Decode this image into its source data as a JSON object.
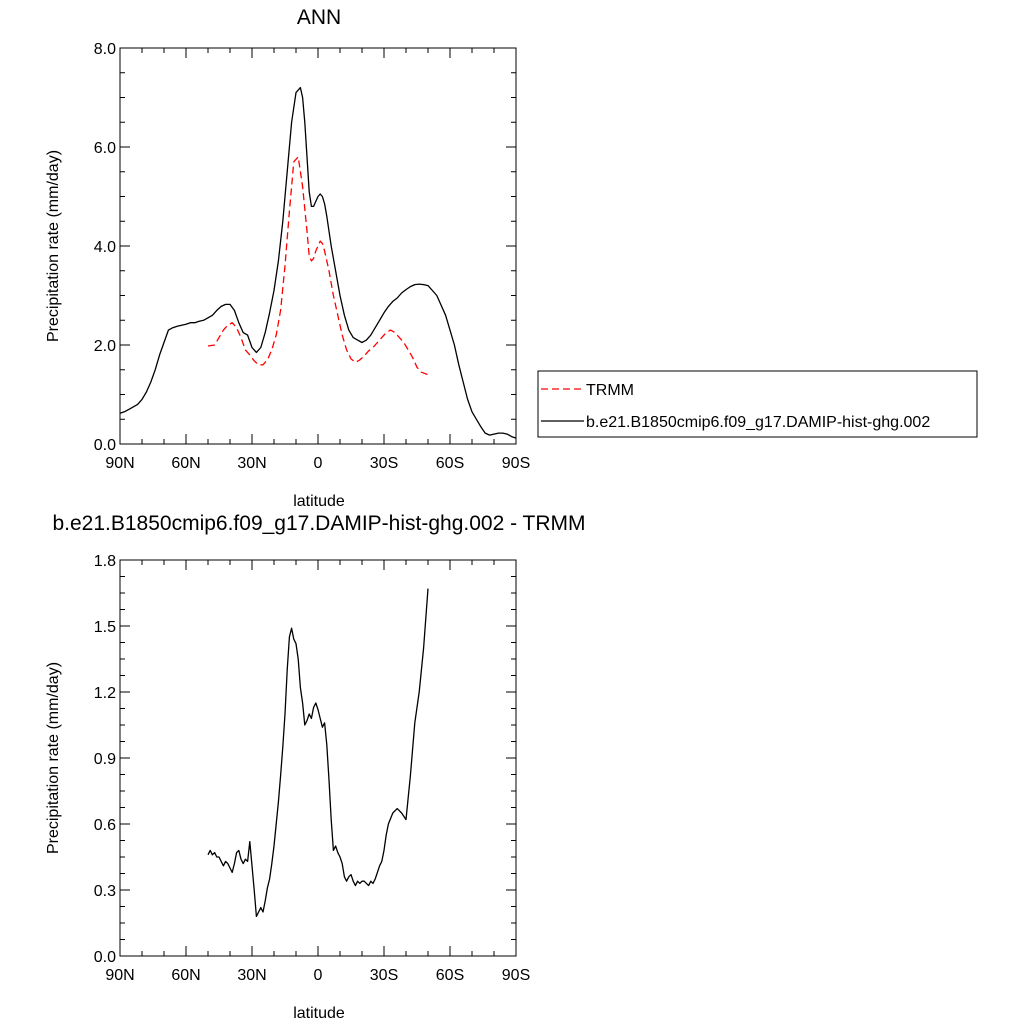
{
  "chart_data": [
    {
      "type": "line",
      "title": "ANN",
      "xlabel": "latitude",
      "ylabel": "Precipitation rate (mm/day)",
      "xlim": [
        90,
        -90
      ],
      "ylim": [
        0,
        8
      ],
      "x_ticks": [
        {
          "value": 90,
          "label": "90N"
        },
        {
          "value": 60,
          "label": "60N"
        },
        {
          "value": 30,
          "label": "30N"
        },
        {
          "value": 0,
          "label": "0"
        },
        {
          "value": -30,
          "label": "30S"
        },
        {
          "value": -60,
          "label": "60S"
        },
        {
          "value": -90,
          "label": "90S"
        }
      ],
      "y_ticks": [
        {
          "value": 0,
          "label": "0.0"
        },
        {
          "value": 2,
          "label": "2.0"
        },
        {
          "value": 4,
          "label": "4.0"
        },
        {
          "value": 6,
          "label": "6.0"
        },
        {
          "value": 8,
          "label": "8.0"
        }
      ],
      "legend": {
        "placement": "right",
        "entries": [
          "TRMM",
          "b.e21.B1850cmip6.f09_g17.DAMIP-hist-ghg.002"
        ]
      },
      "series": [
        {
          "name": "TRMM",
          "color": "#ff0000",
          "dash": "dashed",
          "x": [
            50,
            47,
            45,
            43,
            41,
            39,
            37,
            35,
            33,
            31,
            29,
            27,
            25,
            23,
            21,
            19,
            17,
            15,
            13,
            11,
            9,
            7,
            5,
            4,
            3,
            2,
            1,
            0,
            -1,
            -2,
            -3,
            -4,
            -5,
            -7,
            -9,
            -11,
            -13,
            -15,
            -17,
            -19,
            -21,
            -23,
            -25,
            -27,
            -29,
            -31,
            -33,
            -35,
            -37,
            -39,
            -41,
            -43,
            -45,
            -47,
            -50
          ],
          "values": [
            1.98,
            2.0,
            2.15,
            2.3,
            2.4,
            2.45,
            2.35,
            2.15,
            1.9,
            1.8,
            1.68,
            1.6,
            1.6,
            1.7,
            1.9,
            2.2,
            2.7,
            3.6,
            4.7,
            5.7,
            5.8,
            5.2,
            4.3,
            3.8,
            3.7,
            3.75,
            3.9,
            4.0,
            4.1,
            4.05,
            3.9,
            3.7,
            3.5,
            3.0,
            2.6,
            2.2,
            1.9,
            1.72,
            1.65,
            1.7,
            1.78,
            1.88,
            1.95,
            2.05,
            2.15,
            2.25,
            2.3,
            2.25,
            2.15,
            2.05,
            1.9,
            1.75,
            1.55,
            1.45,
            1.4
          ]
        },
        {
          "name": "b.e21.B1850cmip6.f09_g17.DAMIP-hist-ghg.002",
          "color": "#000000",
          "dash": "solid",
          "x": [
            90,
            88,
            86,
            84,
            82,
            80,
            78,
            76,
            74,
            72,
            70,
            68,
            66,
            64,
            62,
            60,
            58,
            56,
            54,
            52,
            50,
            48,
            46,
            44,
            42,
            40,
            38,
            36,
            34,
            32,
            30,
            28,
            26,
            24,
            22,
            20,
            18,
            16,
            14,
            12,
            10,
            8,
            7,
            6,
            5,
            4,
            3,
            2,
            1,
            0,
            -1,
            -2,
            -3,
            -4,
            -5,
            -6,
            -8,
            -10,
            -12,
            -14,
            -16,
            -18,
            -20,
            -22,
            -24,
            -26,
            -28,
            -30,
            -32,
            -34,
            -36,
            -38,
            -40,
            -42,
            -44,
            -46,
            -48,
            -50,
            -52,
            -54,
            -56,
            -58,
            -60,
            -62,
            -64,
            -66,
            -68,
            -70,
            -72,
            -74,
            -76,
            -78,
            -80,
            -82,
            -84,
            -86,
            -88,
            -90
          ],
          "values": [
            0.62,
            0.65,
            0.7,
            0.75,
            0.8,
            0.9,
            1.05,
            1.25,
            1.5,
            1.8,
            2.05,
            2.3,
            2.35,
            2.38,
            2.4,
            2.42,
            2.45,
            2.45,
            2.48,
            2.5,
            2.55,
            2.6,
            2.7,
            2.78,
            2.82,
            2.82,
            2.7,
            2.45,
            2.25,
            2.2,
            1.95,
            1.85,
            1.95,
            2.25,
            2.65,
            3.1,
            3.7,
            4.5,
            5.5,
            6.5,
            7.1,
            7.2,
            7.0,
            6.5,
            5.8,
            5.1,
            4.8,
            4.8,
            4.9,
            5.0,
            5.05,
            5.0,
            4.85,
            4.6,
            4.3,
            4.0,
            3.5,
            3.0,
            2.6,
            2.3,
            2.15,
            2.1,
            2.05,
            2.1,
            2.2,
            2.35,
            2.5,
            2.65,
            2.78,
            2.88,
            2.95,
            3.05,
            3.12,
            3.18,
            3.22,
            3.23,
            3.22,
            3.2,
            3.1,
            3.0,
            2.8,
            2.6,
            2.3,
            2.0,
            1.6,
            1.25,
            0.9,
            0.65,
            0.5,
            0.35,
            0.22,
            0.18,
            0.2,
            0.22,
            0.22,
            0.2,
            0.15,
            0.12
          ]
        }
      ]
    },
    {
      "type": "line",
      "title": "b.e21.B1850cmip6.f09_g17.DAMIP-hist-ghg.002 - TRMM",
      "xlabel": "latitude",
      "ylabel": "Precipitation rate (mm/day)",
      "xlim": [
        90,
        -90
      ],
      "ylim": [
        0,
        1.8
      ],
      "x_ticks": [
        {
          "value": 90,
          "label": "90N"
        },
        {
          "value": 60,
          "label": "60N"
        },
        {
          "value": 30,
          "label": "30N"
        },
        {
          "value": 0,
          "label": "0"
        },
        {
          "value": -30,
          "label": "30S"
        },
        {
          "value": -60,
          "label": "60S"
        },
        {
          "value": -90,
          "label": "90S"
        }
      ],
      "y_ticks": [
        {
          "value": 0,
          "label": "0.0"
        },
        {
          "value": 0.3,
          "label": "0.3"
        },
        {
          "value": 0.6,
          "label": "0.6"
        },
        {
          "value": 0.9,
          "label": "0.9"
        },
        {
          "value": 1.2,
          "label": "1.2"
        },
        {
          "value": 1.5,
          "label": "1.5"
        },
        {
          "value": 1.8,
          "label": "1.8"
        }
      ],
      "series": [
        {
          "color": "#000000",
          "dash": "solid",
          "x": [
            50,
            49,
            48,
            47,
            46,
            45,
            44,
            43,
            42,
            41,
            40,
            39,
            38,
            37,
            36,
            35,
            34,
            33,
            32,
            31,
            30,
            29,
            28,
            27,
            26,
            25,
            24,
            23,
            22,
            21,
            20,
            19,
            18,
            17,
            16,
            15,
            14,
            13,
            12,
            11,
            10,
            9,
            8,
            7,
            6,
            5,
            4,
            3,
            2,
            1,
            0,
            -1,
            -2,
            -3,
            -4,
            -5,
            -6,
            -7,
            -8,
            -9,
            -10,
            -11,
            -12,
            -13,
            -14,
            -15,
            -16,
            -17,
            -18,
            -19,
            -20,
            -21,
            -22,
            -23,
            -24,
            -25,
            -26,
            -27,
            -28,
            -29,
            -30,
            -31,
            -32,
            -34,
            -36,
            -38,
            -40,
            -42,
            -44,
            -46,
            -48,
            -50
          ],
          "values": [
            0.46,
            0.48,
            0.46,
            0.47,
            0.45,
            0.45,
            0.43,
            0.41,
            0.43,
            0.42,
            0.4,
            0.38,
            0.42,
            0.47,
            0.48,
            0.44,
            0.42,
            0.44,
            0.43,
            0.52,
            0.41,
            0.3,
            0.18,
            0.2,
            0.22,
            0.2,
            0.25,
            0.31,
            0.35,
            0.42,
            0.5,
            0.6,
            0.7,
            0.82,
            0.95,
            1.1,
            1.3,
            1.45,
            1.49,
            1.44,
            1.42,
            1.35,
            1.22,
            1.15,
            1.05,
            1.07,
            1.1,
            1.08,
            1.13,
            1.15,
            1.12,
            1.08,
            1.04,
            1.06,
            0.96,
            0.8,
            0.62,
            0.48,
            0.5,
            0.47,
            0.45,
            0.42,
            0.36,
            0.34,
            0.36,
            0.37,
            0.34,
            0.32,
            0.34,
            0.33,
            0.34,
            0.34,
            0.33,
            0.32,
            0.34,
            0.33,
            0.35,
            0.38,
            0.41,
            0.43,
            0.48,
            0.55,
            0.6,
            0.65,
            0.67,
            0.65,
            0.62,
            0.82,
            1.06,
            1.2,
            1.4,
            1.67
          ]
        }
      ]
    }
  ]
}
